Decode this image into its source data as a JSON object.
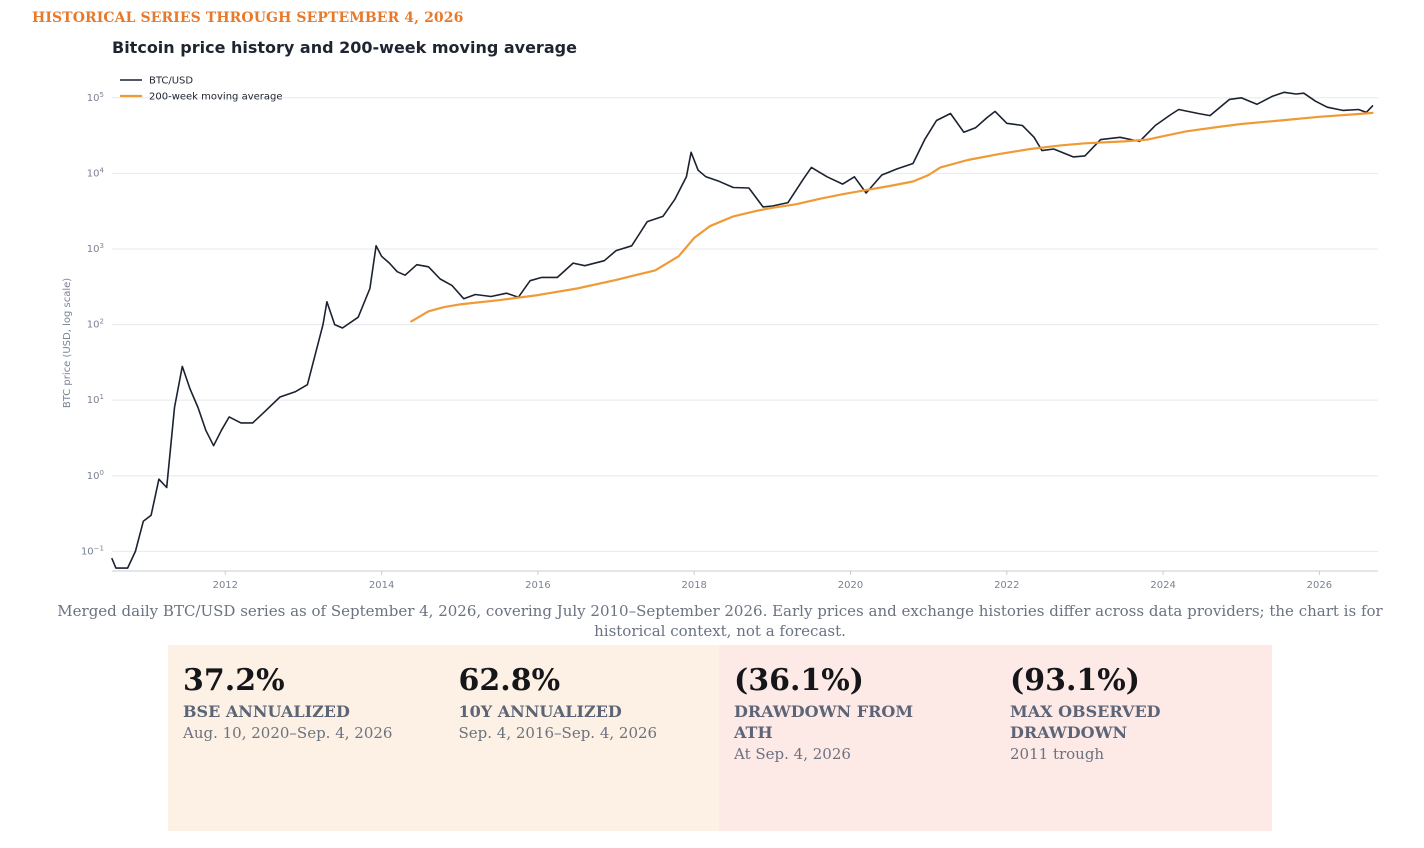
{
  "header": {
    "eyebrow": "HISTORICAL SERIES THROUGH SEPTEMBER 4, 2026"
  },
  "chart_data": {
    "type": "line",
    "title": "Bitcoin price history and 200-week moving average",
    "xlabel": "",
    "ylabel": "BTC price (USD, log scale)",
    "y_scale": "log",
    "ylim": [
      0.055,
      200000
    ],
    "xlim": [
      2010.55,
      2026.75
    ],
    "grid": true,
    "legend_position": "top-left",
    "x_ticks": [
      2012,
      2014,
      2016,
      2018,
      2020,
      2022,
      2024,
      2026
    ],
    "y_ticks": [
      {
        "value": 0.1,
        "base": "10",
        "exp": "−1"
      },
      {
        "value": 1,
        "base": "10",
        "exp": "0"
      },
      {
        "value": 10,
        "base": "10",
        "exp": "1"
      },
      {
        "value": 100,
        "base": "10",
        "exp": "2"
      },
      {
        "value": 1000,
        "base": "10",
        "exp": "3"
      },
      {
        "value": 10000,
        "base": "10",
        "exp": "4"
      },
      {
        "value": 100000,
        "base": "10",
        "exp": "5"
      }
    ],
    "series": [
      {
        "name": "BTC/USD",
        "color": "#1b2230",
        "points": [
          [
            2010.55,
            0.08
          ],
          [
            2010.6,
            0.06
          ],
          [
            2010.75,
            0.06
          ],
          [
            2010.85,
            0.1
          ],
          [
            2010.95,
            0.25
          ],
          [
            2011.05,
            0.3
          ],
          [
            2011.15,
            0.9
          ],
          [
            2011.25,
            0.7
          ],
          [
            2011.35,
            8
          ],
          [
            2011.45,
            28
          ],
          [
            2011.55,
            14
          ],
          [
            2011.65,
            8
          ],
          [
            2011.75,
            4
          ],
          [
            2011.85,
            2.5
          ],
          [
            2011.95,
            4
          ],
          [
            2012.05,
            6
          ],
          [
            2012.2,
            5
          ],
          [
            2012.35,
            5
          ],
          [
            2012.5,
            7
          ],
          [
            2012.7,
            11
          ],
          [
            2012.9,
            13
          ],
          [
            2013.05,
            16
          ],
          [
            2013.25,
            100
          ],
          [
            2013.3,
            200
          ],
          [
            2013.4,
            100
          ],
          [
            2013.5,
            90
          ],
          [
            2013.7,
            125
          ],
          [
            2013.85,
            300
          ],
          [
            2013.93,
            1100
          ],
          [
            2014.0,
            800
          ],
          [
            2014.1,
            650
          ],
          [
            2014.2,
            500
          ],
          [
            2014.3,
            450
          ],
          [
            2014.45,
            620
          ],
          [
            2014.6,
            580
          ],
          [
            2014.75,
            400
          ],
          [
            2014.9,
            330
          ],
          [
            2015.05,
            220
          ],
          [
            2015.2,
            250
          ],
          [
            2015.4,
            235
          ],
          [
            2015.6,
            260
          ],
          [
            2015.75,
            230
          ],
          [
            2015.9,
            380
          ],
          [
            2016.05,
            420
          ],
          [
            2016.25,
            420
          ],
          [
            2016.45,
            650
          ],
          [
            2016.6,
            600
          ],
          [
            2016.85,
            700
          ],
          [
            2017.0,
            950
          ],
          [
            2017.2,
            1100
          ],
          [
            2017.4,
            2300
          ],
          [
            2017.6,
            2700
          ],
          [
            2017.75,
            4500
          ],
          [
            2017.9,
            9000
          ],
          [
            2017.96,
            19000
          ],
          [
            2018.05,
            11000
          ],
          [
            2018.15,
            9000
          ],
          [
            2018.3,
            8000
          ],
          [
            2018.5,
            6500
          ],
          [
            2018.7,
            6400
          ],
          [
            2018.88,
            3600
          ],
          [
            2019.0,
            3700
          ],
          [
            2019.2,
            4100
          ],
          [
            2019.4,
            8500
          ],
          [
            2019.5,
            12000
          ],
          [
            2019.7,
            9000
          ],
          [
            2019.9,
            7200
          ],
          [
            2020.05,
            9000
          ],
          [
            2020.2,
            5500
          ],
          [
            2020.4,
            9500
          ],
          [
            2020.6,
            11500
          ],
          [
            2020.8,
            13500
          ],
          [
            2020.95,
            28000
          ],
          [
            2021.1,
            50000
          ],
          [
            2021.28,
            62000
          ],
          [
            2021.45,
            35000
          ],
          [
            2021.6,
            40000
          ],
          [
            2021.75,
            55000
          ],
          [
            2021.85,
            66000
          ],
          [
            2022.0,
            46000
          ],
          [
            2022.2,
            43000
          ],
          [
            2022.35,
            30000
          ],
          [
            2022.45,
            20000
          ],
          [
            2022.6,
            21000
          ],
          [
            2022.85,
            16500
          ],
          [
            2023.0,
            17000
          ],
          [
            2023.2,
            28000
          ],
          [
            2023.45,
            30000
          ],
          [
            2023.7,
            26500
          ],
          [
            2023.9,
            43000
          ],
          [
            2024.1,
            60000
          ],
          [
            2024.2,
            70000
          ],
          [
            2024.45,
            62000
          ],
          [
            2024.6,
            58000
          ],
          [
            2024.85,
            95000
          ],
          [
            2025.0,
            100000
          ],
          [
            2025.2,
            82000
          ],
          [
            2025.4,
            105000
          ],
          [
            2025.55,
            118000
          ],
          [
            2025.7,
            112000
          ],
          [
            2025.8,
            115000
          ],
          [
            2025.95,
            90000
          ],
          [
            2026.1,
            75000
          ],
          [
            2026.3,
            68000
          ],
          [
            2026.5,
            70000
          ],
          [
            2026.6,
            64000
          ],
          [
            2026.68,
            78000
          ]
        ]
      },
      {
        "name": "200-week moving average",
        "color": "#f09a36",
        "points": [
          [
            2014.38,
            110
          ],
          [
            2014.6,
            150
          ],
          [
            2014.8,
            170
          ],
          [
            2015.0,
            185
          ],
          [
            2015.5,
            210
          ],
          [
            2016.0,
            245
          ],
          [
            2016.5,
            300
          ],
          [
            2017.0,
            390
          ],
          [
            2017.5,
            520
          ],
          [
            2017.8,
            800
          ],
          [
            2018.0,
            1400
          ],
          [
            2018.2,
            2000
          ],
          [
            2018.5,
            2700
          ],
          [
            2018.8,
            3200
          ],
          [
            2019.0,
            3500
          ],
          [
            2019.3,
            3900
          ],
          [
            2019.6,
            4600
          ],
          [
            2019.9,
            5300
          ],
          [
            2020.2,
            6000
          ],
          [
            2020.5,
            6800
          ],
          [
            2020.8,
            7800
          ],
          [
            2021.0,
            9500
          ],
          [
            2021.15,
            12000
          ],
          [
            2021.5,
            15000
          ],
          [
            2021.9,
            18000
          ],
          [
            2022.3,
            21000
          ],
          [
            2022.7,
            23500
          ],
          [
            2023.0,
            25000
          ],
          [
            2023.5,
            26500
          ],
          [
            2023.8,
            28000
          ],
          [
            2024.0,
            31000
          ],
          [
            2024.3,
            36000
          ],
          [
            2024.7,
            41000
          ],
          [
            2025.0,
            45000
          ],
          [
            2025.5,
            50000
          ],
          [
            2026.0,
            56000
          ],
          [
            2026.5,
            61000
          ],
          [
            2026.68,
            63000
          ]
        ]
      }
    ]
  },
  "caption": "Merged daily BTC/USD series as of September 4, 2026, covering July 2010–September 2026. Early prices and exchange histories differ across data providers; the chart is for historical context, not a forecast.",
  "stats": [
    {
      "value": "37.2%",
      "label": "BSE ANNUALIZED",
      "sub": "Aug. 10, 2020–Sep. 4, 2026"
    },
    {
      "value": "62.8%",
      "label": "10Y ANNUALIZED",
      "sub": "Sep. 4, 2016–Sep. 4, 2026"
    },
    {
      "value": "(36.1%)",
      "label": "DRAWDOWN FROM ATH",
      "sub": "At Sep. 4, 2026"
    },
    {
      "value": "(93.1%)",
      "label": "MAX OBSERVED DRAWDOWN",
      "sub": "2011 trough"
    }
  ],
  "colors": {
    "accent": "#e8792a",
    "positive_bg": "#fdf0e4",
    "negative_bg": "#fde9e6",
    "price_line": "#1b2230",
    "ma_line": "#f09a36"
  }
}
